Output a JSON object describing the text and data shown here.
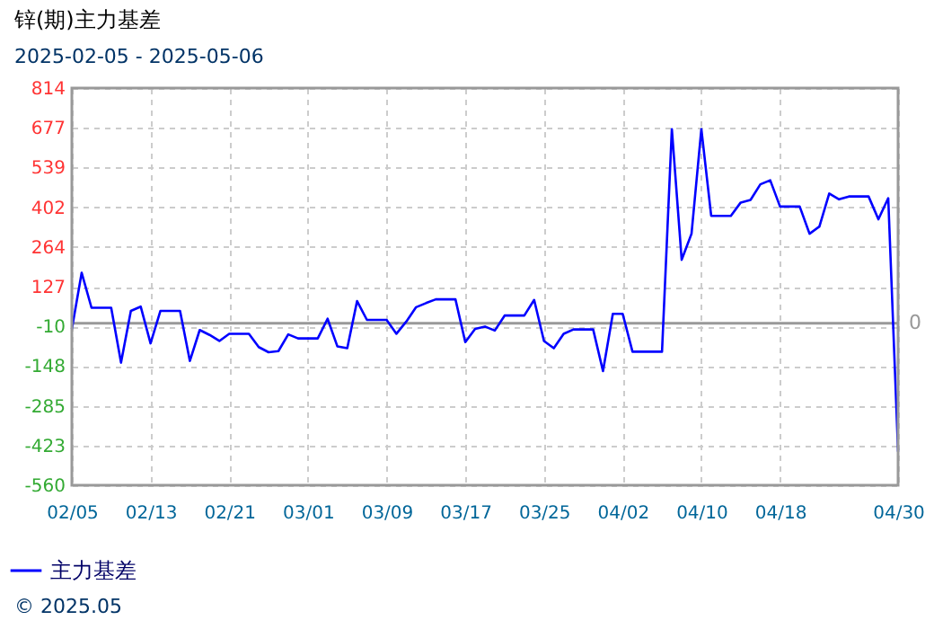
{
  "chart_data": {
    "type": "line",
    "title": "锌(期)主力基差",
    "subtitle": "2025-02-05 - 2025-05-06",
    "x": [
      "2025-02-05",
      "2025-02-06",
      "2025-02-07",
      "2025-02-09",
      "2025-02-10",
      "2025-02-11",
      "2025-02-12",
      "2025-02-13",
      "2025-02-14",
      "2025-02-16",
      "2025-02-17",
      "2025-02-18",
      "2025-02-19",
      "2025-02-20",
      "2025-02-21",
      "2025-02-23",
      "2025-02-24",
      "2025-02-25",
      "2025-02-26",
      "2025-02-27",
      "2025-02-28",
      "2025-03-02",
      "2025-03-03",
      "2025-03-04",
      "2025-03-05",
      "2025-03-06",
      "2025-03-07",
      "2025-03-09",
      "2025-03-10",
      "2025-03-11",
      "2025-03-12",
      "2025-03-13",
      "2025-03-14",
      "2025-03-16",
      "2025-03-17",
      "2025-03-18",
      "2025-03-19",
      "2025-03-20",
      "2025-03-21",
      "2025-03-23",
      "2025-03-24",
      "2025-03-25",
      "2025-03-26",
      "2025-03-27",
      "2025-03-28",
      "2025-03-30",
      "2025-03-31",
      "2025-04-01",
      "2025-04-02",
      "2025-04-03",
      "2025-04-06",
      "2025-04-07",
      "2025-04-08",
      "2025-04-09",
      "2025-04-10",
      "2025-04-11",
      "2025-04-13",
      "2025-04-14",
      "2025-04-15",
      "2025-04-16",
      "2025-04-17",
      "2025-04-18",
      "2025-04-20",
      "2025-04-21",
      "2025-04-22",
      "2025-04-23",
      "2025-04-24",
      "2025-04-25",
      "2025-04-27",
      "2025-04-28",
      "2025-04-29",
      "2025-04-30"
    ],
    "series": [
      {
        "name": "主力基差",
        "color": "#0000ff",
        "values": [
          -20,
          175,
          54,
          54,
          -136,
          43,
          58,
          -69,
          43,
          43,
          -130,
          -23,
          -40,
          -61,
          -36,
          -36,
          -82,
          -100,
          -96,
          -38,
          -52,
          -52,
          16,
          -80,
          -86,
          77,
          12,
          12,
          -36,
          6,
          56,
          70,
          83,
          83,
          -65,
          -19,
          -11,
          -25,
          27,
          27,
          81,
          -61,
          -86,
          -36,
          -21,
          -21,
          -165,
          33,
          33,
          -98,
          -98,
          672,
          220,
          310,
          672,
          372,
          372,
          418,
          427,
          481,
          495,
          404,
          404,
          310,
          335,
          449,
          429,
          439,
          439,
          360,
          433,
          -444
        ]
      }
    ],
    "xlim": [
      "2025-02-05",
      "2025-04-30"
    ],
    "xticks": [
      {
        "value": "2025-02-05",
        "label": "02/05"
      },
      {
        "value": "2025-02-13",
        "label": "02/13"
      },
      {
        "value": "2025-02-21",
        "label": "02/21"
      },
      {
        "value": "2025-03-01",
        "label": "03/01"
      },
      {
        "value": "2025-03-09",
        "label": "03/09"
      },
      {
        "value": "2025-03-17",
        "label": "03/17"
      },
      {
        "value": "2025-03-25",
        "label": "03/25"
      },
      {
        "value": "2025-04-02",
        "label": "04/02"
      },
      {
        "value": "2025-04-10",
        "label": "04/10"
      },
      {
        "value": "2025-04-18",
        "label": "04/18"
      },
      {
        "value": "2025-04-30",
        "label": "04/30"
      }
    ],
    "ylim": [
      -560,
      814
    ],
    "yticks": [
      -560,
      -423,
      -285,
      -148,
      -10,
      127,
      264,
      402,
      539,
      677,
      814
    ],
    "ref_lines": [
      {
        "axis": "y",
        "value": 0,
        "label": "0",
        "color": "#999999"
      }
    ],
    "grid": true,
    "legend": "bottom left",
    "marker": "none",
    "line_style": "solid",
    "annotations": [
      "© 2025.05"
    ]
  }
}
